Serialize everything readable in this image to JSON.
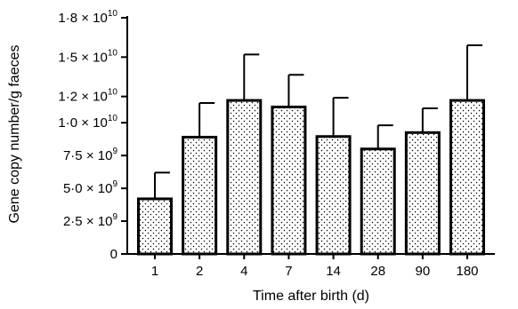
{
  "chart_data": {
    "type": "bar",
    "title": "",
    "xlabel": "Time after birth (d)",
    "ylabel": "Gene copy number/g faeces",
    "categories": [
      "1",
      "2",
      "4",
      "7",
      "14",
      "28",
      "90",
      "180"
    ],
    "values": [
      4200000000.0,
      8900000000.0,
      11700000000.0,
      11200000000.0,
      8950000000.0,
      8000000000.0,
      9250000000.0,
      11700000000.0
    ],
    "error_upper": [
      6200000000.0,
      11500000000.0,
      15200000000.0,
      13650000000.0,
      11900000000.0,
      9800000000.0,
      11100000000.0,
      15900000000.0
    ],
    "ylim": [
      0,
      18000000000
    ],
    "yticks": [
      {
        "value": 0,
        "mantissa": "0",
        "exponent": ""
      },
      {
        "value": 2500000000,
        "mantissa": "2·5 × 10",
        "exponent": "9"
      },
      {
        "value": 5000000000,
        "mantissa": "5·0 × 10",
        "exponent": "9"
      },
      {
        "value": 7500000000,
        "mantissa": "7·5 × 10",
        "exponent": "9"
      },
      {
        "value": 10000000000,
        "mantissa": "1·0 × 10",
        "exponent": "10"
      },
      {
        "value": 12000000000,
        "mantissa": "1·2 × 10",
        "exponent": "10"
      },
      {
        "value": 15000000000,
        "mantissa": "1·5 × 10",
        "exponent": "10"
      },
      {
        "value": 18000000000,
        "mantissa": "1·8 × 10",
        "exponent": "10"
      }
    ],
    "grid": false,
    "bar_fill": "dotted",
    "colors": {
      "bar_outline": "#000000",
      "dot": "#000000",
      "background": "#ffffff"
    }
  }
}
